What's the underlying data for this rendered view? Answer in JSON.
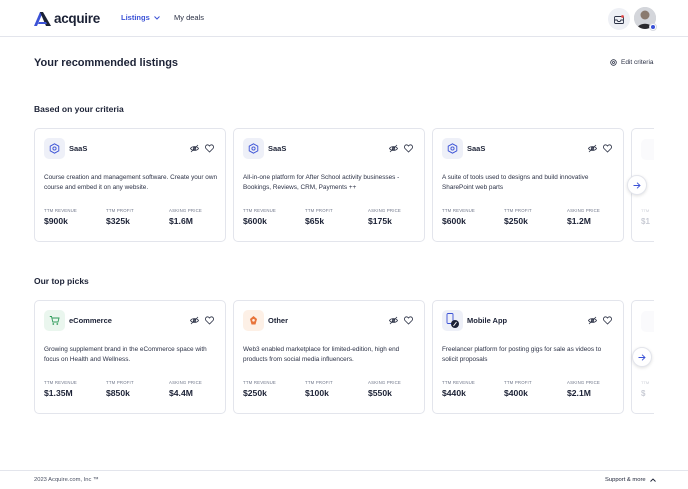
{
  "header": {
    "logo_text": "acquire",
    "nav": {
      "listings_label": "Listings",
      "deals_label": "My deals"
    }
  },
  "main": {
    "title": "Your recommended listings",
    "edit_label": "Edit criteria"
  },
  "sections": [
    {
      "title": "Based on your criteria",
      "cards": [
        {
          "category": "SaaS",
          "icon": "saas-icon",
          "description": "Course creation and management software. Create your own course and embed it on any website.",
          "metrics": [
            {
              "label": "TTM REVENUE",
              "value": "$900k"
            },
            {
              "label": "TTM PROFIT",
              "value": "$325k"
            },
            {
              "label": "ASKING PRICE",
              "value": "$1.6M"
            }
          ]
        },
        {
          "category": "SaaS",
          "icon": "saas-icon",
          "description": "All-in-one platform for After School activity businesses - Bookings, Reviews, CRM, Payments ++",
          "metrics": [
            {
              "label": "TTM REVENUE",
              "value": "$600k"
            },
            {
              "label": "TTM PROFIT",
              "value": "$65k"
            },
            {
              "label": "ASKING PRICE",
              "value": "$175k"
            }
          ]
        },
        {
          "category": "SaaS",
          "icon": "saas-icon",
          "description": "A suite of tools used to designs and build innovative SharePoint web parts",
          "metrics": [
            {
              "label": "TTM REVENUE",
              "value": "$600k"
            },
            {
              "label": "TTM PROFIT",
              "value": "$250k"
            },
            {
              "label": "ASKING PRICE",
              "value": "$1.2M"
            }
          ]
        }
      ],
      "peek": {
        "label": "TTM",
        "value": "$1"
      }
    },
    {
      "title": "Our top picks",
      "cards": [
        {
          "category": "eCommerce",
          "icon": "shopping-cart-icon",
          "description": "Growing supplement brand in the eCommerce space with focus on Health and Wellness.",
          "metrics": [
            {
              "label": "TTM REVENUE",
              "value": "$1.35M"
            },
            {
              "label": "TTM PROFIT",
              "value": "$850k"
            },
            {
              "label": "ASKING PRICE",
              "value": "$4.4M"
            }
          ]
        },
        {
          "category": "Other",
          "icon": "other-icon",
          "description": "Web3 enabled marketplace for limited-edition, high end products from social media influencers.",
          "metrics": [
            {
              "label": "TTM REVENUE",
              "value": "$250k"
            },
            {
              "label": "TTM PROFIT",
              "value": "$100k"
            },
            {
              "label": "ASKING PRICE",
              "value": "$550k"
            }
          ]
        },
        {
          "category": "Mobile App",
          "icon": "mobile-app-icon",
          "description": "Freelancer platform for posting gigs for sale as videos to solicit proposals",
          "metrics": [
            {
              "label": "TTM REVENUE",
              "value": "$440k"
            },
            {
              "label": "TTM PROFIT",
              "value": "$400k"
            },
            {
              "label": "ASKING PRICE",
              "value": "$2.1M"
            }
          ]
        }
      ],
      "peek": {
        "label": "TTM",
        "value": "$"
      }
    }
  ],
  "footer": {
    "copyright": "2023 Acquire.com, Inc ™",
    "support_label": "Support & more"
  },
  "colors": {
    "brand": "#3b52d6",
    "text": "#1c2236",
    "muted": "#6f7689",
    "border": "#e3e5ec"
  }
}
